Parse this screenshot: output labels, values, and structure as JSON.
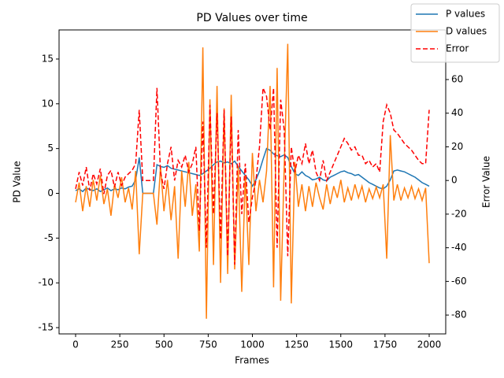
{
  "chart_data": {
    "type": "line",
    "title": "PD Values over time",
    "x_label": "Frames",
    "y_label": "PD Value",
    "y2_label": "Error Value",
    "x": [
      0,
      20,
      40,
      60,
      80,
      100,
      120,
      140,
      160,
      180,
      200,
      220,
      240,
      260,
      280,
      300,
      320,
      340,
      360,
      380,
      400,
      420,
      440,
      460,
      480,
      500,
      520,
      540,
      560,
      580,
      600,
      620,
      640,
      660,
      680,
      700,
      720,
      740,
      760,
      780,
      800,
      820,
      840,
      860,
      880,
      900,
      920,
      940,
      960,
      980,
      1000,
      1020,
      1040,
      1060,
      1080,
      1100,
      1120,
      1140,
      1160,
      1180,
      1200,
      1220,
      1240,
      1260,
      1280,
      1300,
      1320,
      1340,
      1360,
      1380,
      1400,
      1420,
      1440,
      1460,
      1480,
      1500,
      1520,
      1540,
      1560,
      1580,
      1600,
      1620,
      1640,
      1660,
      1680,
      1700,
      1720,
      1740,
      1760,
      1780,
      1800,
      1820,
      1840,
      1860,
      1880,
      1900,
      1920,
      1940,
      1960,
      1980,
      2000
    ],
    "series": [
      {
        "name": "P values",
        "color": "#1f77b4",
        "dash": false,
        "values": [
          0.3,
          0.5,
          0.2,
          0.6,
          0.4,
          0.3,
          0.5,
          0.2,
          0.4,
          0.6,
          0.3,
          0.5,
          0.4,
          0.6,
          0.5,
          0.7,
          0.8,
          1.5,
          4.0,
          0,
          0,
          0,
          0,
          3.2,
          3.0,
          2.9,
          3.1,
          2.8,
          2.7,
          2.6,
          2.5,
          2.4,
          2.3,
          2.2,
          2.1,
          2.0,
          2.2,
          2.5,
          2.8,
          3.2,
          3.5,
          3.6,
          3.4,
          3.5,
          3.3,
          3.6,
          3.0,
          2.5,
          2.0,
          1.5,
          0.8,
          1.5,
          2.5,
          3.8,
          5.0,
          4.8,
          4.4,
          4.2,
          4.1,
          4.3,
          4.0,
          3.0,
          2.2,
          2.0,
          2.4,
          2.0,
          1.8,
          1.5,
          1.6,
          1.8,
          1.5,
          1.4,
          1.8,
          2.0,
          2.2,
          2.4,
          2.5,
          2.3,
          2.2,
          2.0,
          2.1,
          1.8,
          1.5,
          1.2,
          1.0,
          0.8,
          0.6,
          0.5,
          0.8,
          1.5,
          2.5,
          2.6,
          2.5,
          2.4,
          2.2,
          2.0,
          1.8,
          1.5,
          1.2,
          1.0,
          0.8
        ]
      },
      {
        "name": "D values",
        "color": "#ff7f0e",
        "dash": false,
        "values": [
          -1.0,
          1.2,
          -2.0,
          0.8,
          -1.5,
          1.5,
          -0.8,
          2.0,
          -1.2,
          0.5,
          -2.5,
          1.0,
          -0.5,
          1.8,
          -1.0,
          0.6,
          -1.8,
          2.5,
          -6.8,
          0,
          0,
          0,
          0,
          -3.5,
          3.0,
          -2.0,
          1.5,
          -3.0,
          0.8,
          -7.3,
          2.5,
          -1.5,
          3.5,
          -2.5,
          1.0,
          -6.5,
          16.3,
          -14.0,
          10.5,
          -8.0,
          12.0,
          -10.0,
          9.5,
          -9.0,
          11.0,
          -8.5,
          3.0,
          -11.0,
          2.0,
          -8.0,
          4.5,
          -2.0,
          1.5,
          -1.0,
          2.5,
          12.0,
          -10.5,
          14.0,
          -12.0,
          3.0,
          16.7,
          -12.3,
          3.5,
          -1.5,
          1.0,
          -2.0,
          0.8,
          -1.5,
          1.2,
          -0.5,
          -1.8,
          1.0,
          -1.2,
          0.8,
          -0.5,
          1.5,
          -1.0,
          0.6,
          -0.8,
          1.0,
          -0.5,
          0.8,
          -1.0,
          0.5,
          -0.6,
          0.7,
          -0.5,
          1.0,
          -7.3,
          6.5,
          -0.8,
          1.0,
          -0.8,
          0.6,
          -0.5,
          0.8,
          -0.6,
          0.5,
          -0.8,
          0.6,
          -7.8
        ]
      },
      {
        "name": "Error",
        "color": "#ff0000",
        "dash": true,
        "axis": "y2",
        "values": [
          -5,
          5,
          -3,
          8,
          -6,
          4,
          -2,
          7,
          -8,
          3,
          6,
          -4,
          5,
          -3,
          2,
          4,
          6,
          10,
          42,
          0,
          0,
          0,
          0,
          55,
          5,
          -5,
          10,
          20,
          0,
          12,
          8,
          15,
          5,
          10,
          20,
          -30,
          35,
          -40,
          45,
          -20,
          40,
          -35,
          42,
          -45,
          38,
          -50,
          30,
          -20,
          10,
          -25,
          -10,
          0,
          20,
          55,
          50,
          30,
          55,
          -40,
          48,
          30,
          -45,
          20,
          5,
          15,
          10,
          22,
          10,
          18,
          5,
          0,
          12,
          0,
          5,
          10,
          15,
          20,
          25,
          22,
          18,
          20,
          15,
          15,
          10,
          12,
          8,
          10,
          5,
          35,
          45,
          40,
          30,
          28,
          25,
          22,
          20,
          18,
          15,
          12,
          10,
          10,
          42
        ]
      }
    ],
    "xlim": [
      -93.5,
      2093.5
    ],
    "xticks": [
      0,
      250,
      500,
      750,
      1000,
      1250,
      1500,
      1750,
      2000
    ],
    "ylim": [
      -15.7,
      18.25
    ],
    "yticks": [
      -15,
      -10,
      -5,
      0,
      5,
      10,
      15
    ],
    "y2lim": [
      -91.2,
      89.5
    ],
    "y2ticks": [
      -80,
      -60,
      -40,
      -20,
      0,
      20,
      40,
      60
    ],
    "grid": false,
    "legend": "upper right"
  }
}
